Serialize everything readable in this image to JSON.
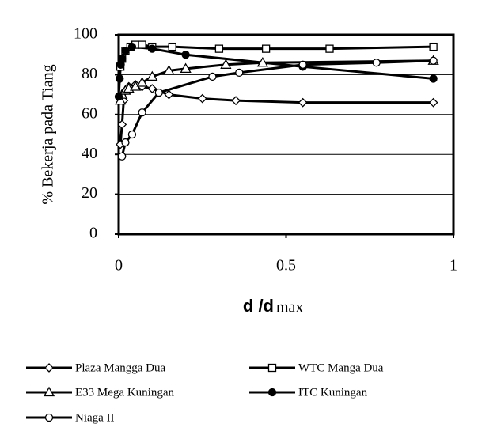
{
  "chart_data": {
    "type": "line",
    "ylabel": "% Bekerja pada Tiang",
    "xlabel": [
      "d /d",
      "max"
    ],
    "xlim": [
      0,
      1
    ],
    "xticks": [
      0,
      0.5,
      1
    ],
    "ylim": [
      0,
      100
    ],
    "yticks": [
      0,
      20,
      40,
      60,
      80,
      100
    ],
    "grid": true,
    "series": [
      {
        "name": "Plaza Mangga Dua",
        "color": "#000000",
        "marker": "diamond",
        "marker_fill": "#ffffff",
        "x": [
          0.005,
          0.01,
          0.015,
          0.02,
          0.03,
          0.05,
          0.07,
          0.1,
          0.15,
          0.25,
          0.35,
          0.55,
          0.94
        ],
        "values": [
          45,
          55,
          67,
          72,
          74,
          75,
          74,
          73,
          70,
          68,
          67,
          66,
          66
        ]
      },
      {
        "name": "WTC Manga Dua",
        "color": "#000000",
        "marker": "square",
        "marker_fill": "#ffffff",
        "x": [
          0.005,
          0.01,
          0.02,
          0.035,
          0.05,
          0.07,
          0.1,
          0.16,
          0.3,
          0.44,
          0.63,
          0.94
        ],
        "values": [
          84,
          88,
          92,
          94,
          95,
          95,
          94,
          94,
          93,
          93,
          93,
          94
        ]
      },
      {
        "name": "E33 Mega Kuningan",
        "color": "#000000",
        "marker": "triangle",
        "marker_fill": "#ffffff",
        "x": [
          0.005,
          0.01,
          0.02,
          0.03,
          0.05,
          0.07,
          0.1,
          0.15,
          0.2,
          0.32,
          0.43,
          0.94
        ],
        "values": [
          67,
          70,
          72,
          73,
          74,
          76,
          79,
          82,
          83,
          85,
          86,
          87
        ]
      },
      {
        "name": "ITC Kuningan",
        "color": "#000000",
        "marker": "circle",
        "marker_fill": "#000000",
        "x": [
          0,
          0.003,
          0.006,
          0.01,
          0.02,
          0.04,
          0.1,
          0.2,
          0.55,
          0.94
        ],
        "values": [
          69,
          78,
          85,
          88,
          92,
          94,
          93,
          90,
          84,
          78
        ]
      },
      {
        "name": "Niaga II",
        "color": "#000000",
        "marker": "circle",
        "marker_fill": "#ffffff",
        "x": [
          0.01,
          0.02,
          0.04,
          0.07,
          0.12,
          0.28,
          0.36,
          0.55,
          0.77,
          0.94
        ],
        "values": [
          39,
          46,
          50,
          61,
          71,
          79,
          81,
          85,
          86,
          87
        ]
      }
    ],
    "legend": "bottom"
  }
}
